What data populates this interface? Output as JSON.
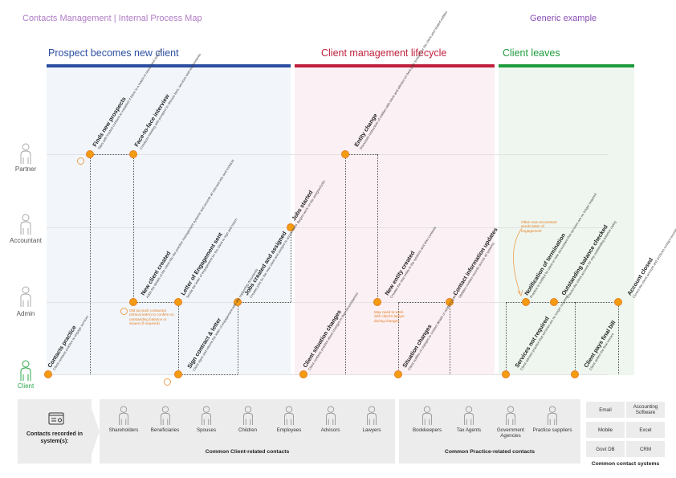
{
  "header": {
    "title": "Contacts Management | Internal Process Map",
    "right_label": "Generic example"
  },
  "phases": [
    {
      "label": "Prospect becomes new client",
      "color": "#2b4ea2"
    },
    {
      "label": "Client management lifecycle",
      "color": "#c0203c"
    },
    {
      "label": "Client leaves",
      "color": "#1e9b3c"
    }
  ],
  "lanes": [
    "Partner",
    "Accountant",
    "Admin",
    "Client"
  ],
  "steps": {
    "finds_prospects": {
      "title": "Finds new prospects",
      "desc": "Talks with trusted contacts to establish if there is a match in needs and services"
    },
    "interview": {
      "title": "Face-to-face interview",
      "desc": "Conducts meeting with prospect to discuss fees, services and requirements"
    },
    "contacts_practice": {
      "title": "Contacts practice",
      "desc": "Client contacts practice to engage services"
    },
    "new_client_created": {
      "title": "New client created",
      "desc": "Adds the details of the client into the practice management systems and records all relevant info and contacts"
    },
    "loe_sent": {
      "title": "Letter of Engagement sent",
      "desc": "Sends the letter of engagement for the client to sign and return"
    },
    "sign_contract": {
      "title": "Sign contract & letter",
      "desc": "Client signs and returns the letter of engagement with any supporting documents"
    },
    "jobs_created": {
      "title": "Jobs created and assigned",
      "desc": "Creates jobs for the new client and assigns to accountants"
    },
    "jobs_started": {
      "title": "Jobs started",
      "desc": "Begins work on the assigned jobs"
    },
    "entity_change": {
      "title": "Entity change",
      "desc": "Discusses restructure of entities with client and advises on best path forward for the client and related entities"
    },
    "client_situation": {
      "title": "Client situation changes",
      "desc": "Client contacts practice about changes in their circumstances"
    },
    "new_entity": {
      "title": "New entity created",
      "desc": "Creates the new entity in the systems and links contacts"
    },
    "situation_changes": {
      "title": "Situation changes",
      "desc": "Client notifies of changes to contact details or related parties"
    },
    "contact_updates": {
      "title": "Contact information updates",
      "desc": "Updates contact records across all systems"
    },
    "notification_termination": {
      "title": "Notification of termination",
      "desc": "Practice is notified by client or new accountant that services are no longer required"
    },
    "balance_checked": {
      "title": "Outstanding balance checked",
      "desc": "Checks the client account for any outstanding balance owing"
    },
    "account_closed": {
      "title": "Account closed",
      "desc": "Closes the client account and archives contact records"
    },
    "services_not_required": {
      "title": "Services not required",
      "desc": "Client advises practice that services are no longer required"
    },
    "client_pays": {
      "title": "Client pays final bill",
      "desc": "Client settles the final invoice"
    }
  },
  "notes": {
    "old_account": "Old account contacted (ethical letter) to confirm no outstanding balance or issues (if required)",
    "new_entity": "May need to work with client's lawyer during changes",
    "new_account": "Often new accountant sends letter of engagement"
  },
  "bottom": {
    "recorded_label": "Contacts recorded in system(s):",
    "client_contacts": [
      "Shareholders",
      "Beneficiaries",
      "Spouses",
      "Children",
      "Employees",
      "Advisors",
      "Lawyers"
    ],
    "client_title": "Common Client-related contacts",
    "practice_contacts": [
      "Bookkeepers",
      "Tax Agents",
      "Government Agencies",
      "Practice suppliers"
    ],
    "practice_title": "Common Practice-related contacts",
    "systems": [
      "Email",
      "Accounting Software",
      "Mobile",
      "Excel",
      "Govt DB",
      "CRM"
    ],
    "systems_title": "Common contact systems"
  },
  "colors": {
    "node": "#f39c12",
    "phase1_bg": "#f2f6fb",
    "phase2_bg": "#fbf0f3",
    "phase3_bg": "#eef6ef",
    "client_lane": "#2eaa4a"
  }
}
